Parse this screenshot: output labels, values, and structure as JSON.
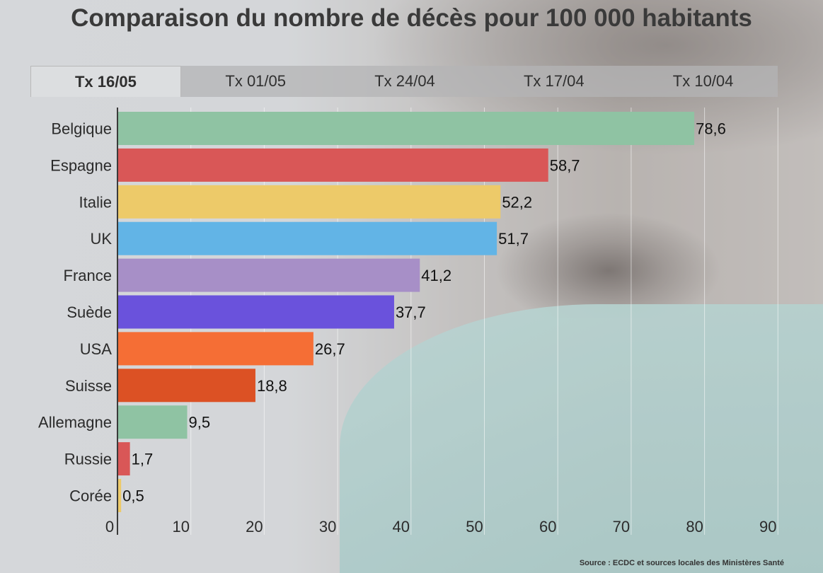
{
  "title": "Comparaison du nombre de décès pour 100 000 habitants",
  "tabs": [
    {
      "label": "Tx 16/05",
      "active": true
    },
    {
      "label": "Tx 01/05",
      "active": false
    },
    {
      "label": "Tx 24/04",
      "active": false
    },
    {
      "label": "Tx 17/04",
      "active": false
    },
    {
      "label": "Tx 10/04",
      "active": false
    }
  ],
  "source": "Source : ECDC et sources locales des Ministères Santé",
  "chart_data": {
    "type": "bar",
    "orientation": "horizontal",
    "categories": [
      "Belgique",
      "Espagne",
      "Italie",
      "UK",
      "France",
      "Suède",
      "USA",
      "Suisse",
      "Allemagne",
      "Russie",
      "Corée"
    ],
    "values": [
      78.6,
      58.7,
      52.2,
      51.7,
      41.2,
      37.7,
      26.7,
      18.8,
      9.5,
      1.7,
      0.5
    ],
    "value_labels": [
      "78,6",
      "58,7",
      "52,2",
      "51,7",
      "41,2",
      "37,7",
      "26,7",
      "18,8",
      "9,5",
      "1,7",
      "0,5"
    ],
    "colors": [
      "#8fc3a3",
      "#d95757",
      "#edca69",
      "#62b4e6",
      "#a78fc7",
      "#6a52dc",
      "#f56e35",
      "#dc5124",
      "#8fc3a3",
      "#d95757",
      "#edca69"
    ],
    "xlim": [
      0,
      90
    ],
    "xticks": [
      0,
      10,
      20,
      30,
      40,
      50,
      60,
      70,
      80,
      90
    ],
    "grid": true
  }
}
